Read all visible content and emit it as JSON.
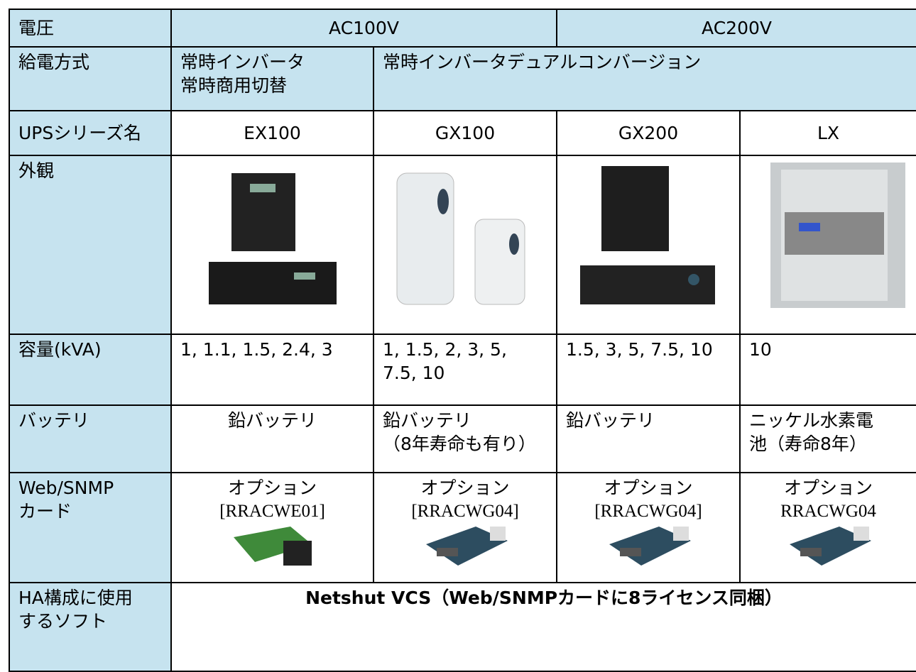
{
  "table": {
    "rows": [
      [
        "電圧",
        "AC100V",
        "AC200V"
      ],
      [
        "給電方式",
        [
          "常時インバータ",
          "常時商用切替"
        ],
        "常時インバータデュアルコンバージョン"
      ],
      [
        "UPSシリーズ名",
        "EX100",
        "GX100",
        "GX200",
        "LX"
      ],
      [
        "外観"
      ],
      [
        "容量(kVA)",
        "1, 1.1, 1.5, 2.4, 3",
        [
          "1, 1.5, 2, 3, 5,",
          "7.5, 10"
        ],
        "1.5, 3, 5, 7.5, 10",
        "10"
      ],
      [
        "バッテリ",
        "鉛バッテリ",
        [
          "鉛バッテリ",
          "（8年寿命も有り）"
        ],
        "鉛バッテリ",
        [
          "ニッケル水素電",
          "池（寿命8年）"
        ]
      ],
      [
        [
          "Web/SNMP",
          "カード"
        ],
        [
          "オプション",
          "[RRACWE01]"
        ],
        [
          "オプション",
          "[RRACWG04]"
        ],
        [
          "オプション",
          "[RRACWG04]"
        ],
        [
          "オプション",
          "RRACWG04"
        ]
      ],
      [
        [
          "HA構成に使用",
          "するソフト"
        ],
        "Netshut VCS（Web/SNMPカードに8ライセンス同梱）"
      ]
    ]
  }
}
